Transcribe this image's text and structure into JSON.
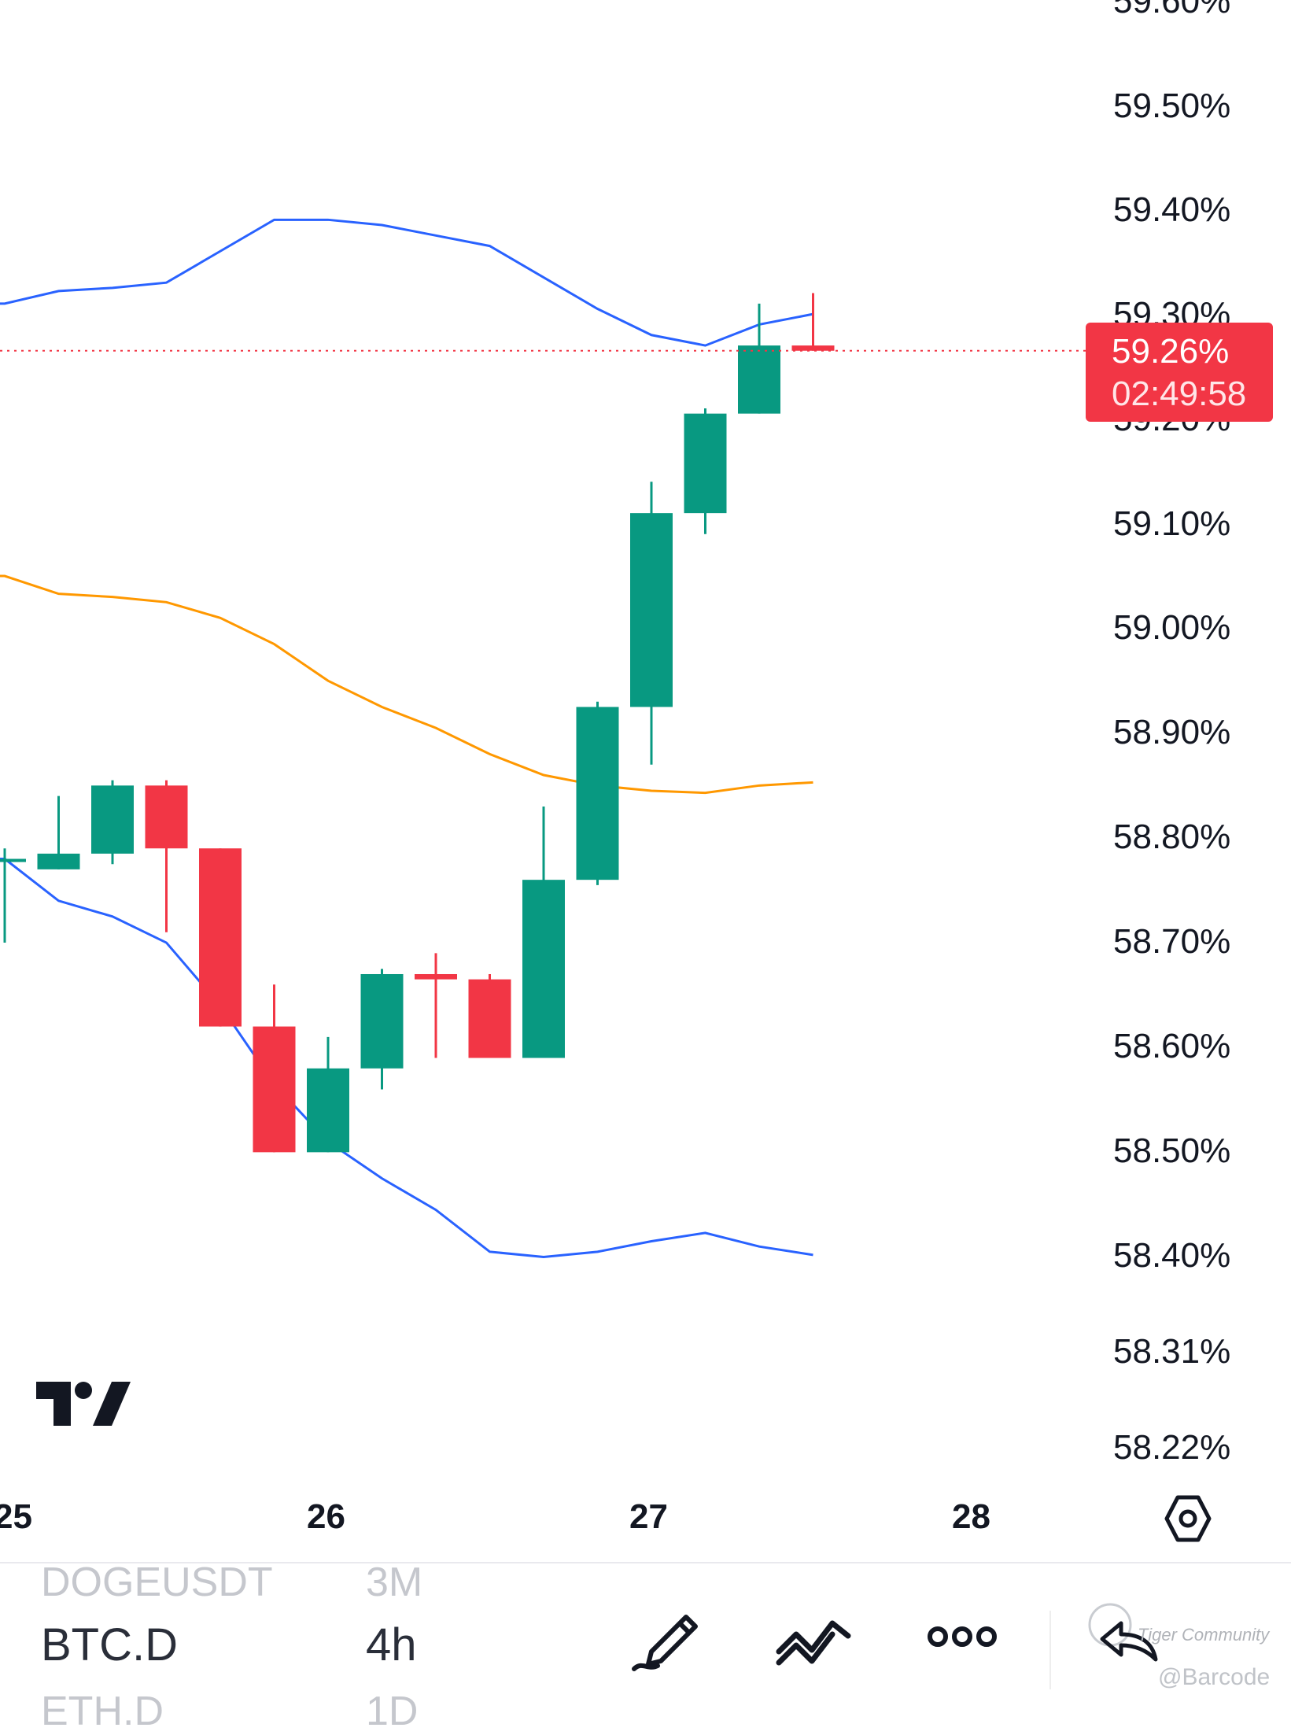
{
  "chart_data": {
    "type": "candlestick",
    "y_axis": {
      "tick_labels": [
        "59.60%",
        "59.50%",
        "59.40%",
        "59.30%",
        "59.20%",
        "59.10%",
        "59.00%",
        "58.90%",
        "58.80%",
        "58.70%",
        "58.60%",
        "58.50%",
        "58.40%",
        "58.31%",
        "58.22%"
      ],
      "range": [
        58.2,
        59.62
      ],
      "unit": "%"
    },
    "x_axis": {
      "tick_labels": [
        "25",
        "26",
        "27",
        "28"
      ]
    },
    "candles": [
      {
        "o": 58.78,
        "h": 58.79,
        "l": 58.7,
        "c": 58.78
      },
      {
        "o": 58.77,
        "h": 58.84,
        "l": 58.77,
        "c": 58.785
      },
      {
        "o": 58.785,
        "h": 58.855,
        "l": 58.775,
        "c": 58.85
      },
      {
        "o": 58.85,
        "h": 58.855,
        "l": 58.71,
        "c": 58.79
      },
      {
        "o": 58.79,
        "h": 58.79,
        "l": 58.62,
        "c": 58.62
      },
      {
        "o": 58.62,
        "h": 58.66,
        "l": 58.5,
        "c": 58.5
      },
      {
        "o": 58.5,
        "h": 58.61,
        "l": 58.5,
        "c": 58.58
      },
      {
        "o": 58.58,
        "h": 58.675,
        "l": 58.56,
        "c": 58.67
      },
      {
        "o": 58.67,
        "h": 58.69,
        "l": 58.59,
        "c": 58.665
      },
      {
        "o": 58.665,
        "h": 58.67,
        "l": 58.59,
        "c": 58.59
      },
      {
        "o": 58.59,
        "h": 58.83,
        "l": 58.59,
        "c": 58.76
      },
      {
        "o": 58.76,
        "h": 58.93,
        "l": 58.755,
        "c": 58.925
      },
      {
        "o": 58.925,
        "h": 59.14,
        "l": 58.87,
        "c": 59.11
      },
      {
        "o": 59.11,
        "h": 59.21,
        "l": 59.09,
        "c": 59.205
      },
      {
        "o": 59.205,
        "h": 59.31,
        "l": 59.205,
        "c": 59.27
      },
      {
        "o": 59.27,
        "h": 59.32,
        "l": 59.265,
        "c": 59.265
      }
    ],
    "bollinger_upper": [
      59.31,
      59.322,
      59.325,
      59.33,
      59.36,
      59.39,
      59.39,
      59.385,
      59.375,
      59.365,
      59.335,
      59.305,
      59.28,
      59.27,
      59.29,
      59.3
    ],
    "bollinger_middle": [
      59.05,
      59.033,
      59.03,
      59.025,
      59.01,
      58.985,
      58.95,
      58.925,
      58.905,
      58.88,
      58.86,
      58.85,
      58.845,
      58.843,
      58.85,
      58.853
    ],
    "bollinger_lower": [
      58.78,
      58.74,
      58.725,
      58.7,
      58.64,
      58.565,
      58.51,
      58.475,
      58.445,
      58.405,
      58.4,
      58.405,
      58.415,
      58.423,
      58.41,
      58.402
    ],
    "colors": {
      "up": "#089981",
      "down": "#f23645",
      "upper_band": "#2962ff",
      "middle_band": "#ff9800",
      "lower_band": "#2962ff",
      "last_price_line": "#f23645"
    },
    "last_price": {
      "value_label": "59.26%",
      "countdown": "02:49:58",
      "value": 59.265
    }
  },
  "bottom_bar": {
    "prev_symbol": "DOGEUSDT",
    "prev_interval": "3M",
    "symbol": "BTC.D",
    "interval": "4h",
    "next_symbol": "ETH.D",
    "next_interval": "1D"
  },
  "icons": {
    "draw": "pencil-icon",
    "indicators": "indicators-icon",
    "more": "more-dots-icon",
    "undo": "undo-icon",
    "settings": "settings-hexagon-icon"
  },
  "watermark": {
    "line1": "Tiger Community",
    "line2": "@Barcode"
  }
}
